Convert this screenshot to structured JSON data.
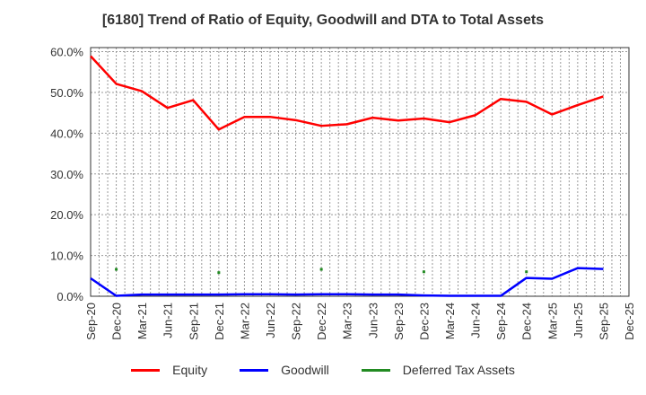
{
  "chart_data": {
    "type": "line",
    "title": "[6180]  Trend of Ratio of Equity, Goodwill and DTA to Total Assets",
    "xlabel": "",
    "ylabel": "",
    "ylim": [
      0,
      60
    ],
    "yticks": [
      "0.0%",
      "10.0%",
      "20.0%",
      "30.0%",
      "40.0%",
      "50.0%",
      "60.0%"
    ],
    "ytick_values": [
      0,
      10,
      20,
      30,
      40,
      50,
      60
    ],
    "categories": [
      "Sep-20",
      "Dec-20",
      "Mar-21",
      "Jun-21",
      "Sep-21",
      "Dec-21",
      "Mar-22",
      "Jun-22",
      "Sep-22",
      "Dec-22",
      "Mar-23",
      "Jun-23",
      "Sep-23",
      "Dec-23",
      "Mar-24",
      "Jun-24",
      "Sep-24",
      "Dec-24",
      "Mar-25",
      "Jun-25",
      "Sep-25",
      "Dec-25"
    ],
    "grid": true,
    "legend_position": "bottom-center",
    "series": [
      {
        "name": "Equity",
        "color": "#ff0000",
        "style": "line",
        "values": [
          58.9,
          52.1,
          50.3,
          46.2,
          48.1,
          40.9,
          44.0,
          44.0,
          43.2,
          41.8,
          42.2,
          43.8,
          43.1,
          43.6,
          42.7,
          44.4,
          48.4,
          47.7,
          44.6,
          46.9,
          49.0,
          null
        ]
      },
      {
        "name": "Goodwill",
        "color": "#0000ff",
        "style": "line",
        "values": [
          4.4,
          0.1,
          0.4,
          0.4,
          0.4,
          0.4,
          0.5,
          0.5,
          0.4,
          0.5,
          0.5,
          0.4,
          0.4,
          0.2,
          0.1,
          0.1,
          0.1,
          4.5,
          4.3,
          6.9,
          6.7,
          null
        ]
      },
      {
        "name": "Deferred Tax Assets",
        "color": "#228b22",
        "style": "points",
        "values": [
          null,
          6.6,
          null,
          null,
          null,
          5.8,
          null,
          null,
          null,
          6.6,
          null,
          null,
          null,
          6.0,
          null,
          null,
          null,
          6.0,
          null,
          null,
          null,
          null
        ]
      }
    ]
  }
}
